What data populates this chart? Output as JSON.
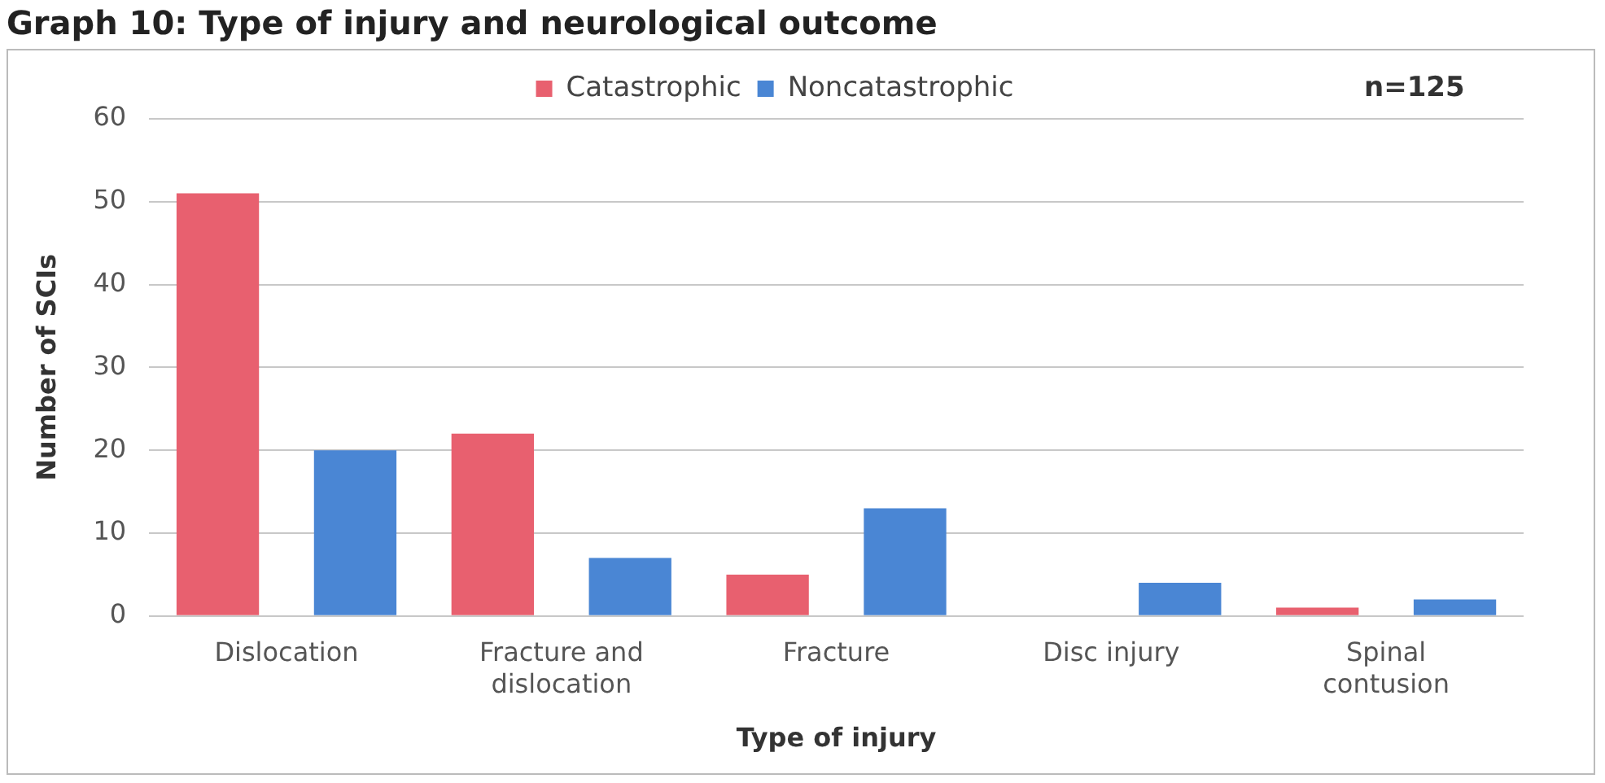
{
  "chart_data": {
    "type": "bar",
    "title": "Graph 10: Type of injury and neurological outcome",
    "xlabel": "Type of injury",
    "ylabel": "Number of SCIs",
    "categories": [
      "Dislocation",
      "Fracture and dislocation",
      "Fracture",
      "Disc injury",
      "Spinal contusion"
    ],
    "series": [
      {
        "name": "Catastrophic",
        "color": "#e8606f",
        "values": [
          51,
          22,
          5,
          0,
          1
        ]
      },
      {
        "name": "Noncatastrophic",
        "color": "#4a86d4",
        "values": [
          20,
          7,
          13,
          4,
          2
        ]
      }
    ],
    "ylim": [
      0,
      60
    ],
    "yticks": [
      0,
      10,
      20,
      30,
      40,
      50,
      60
    ],
    "grid": "y",
    "legend": "top",
    "annotations": [
      "n=125"
    ]
  }
}
